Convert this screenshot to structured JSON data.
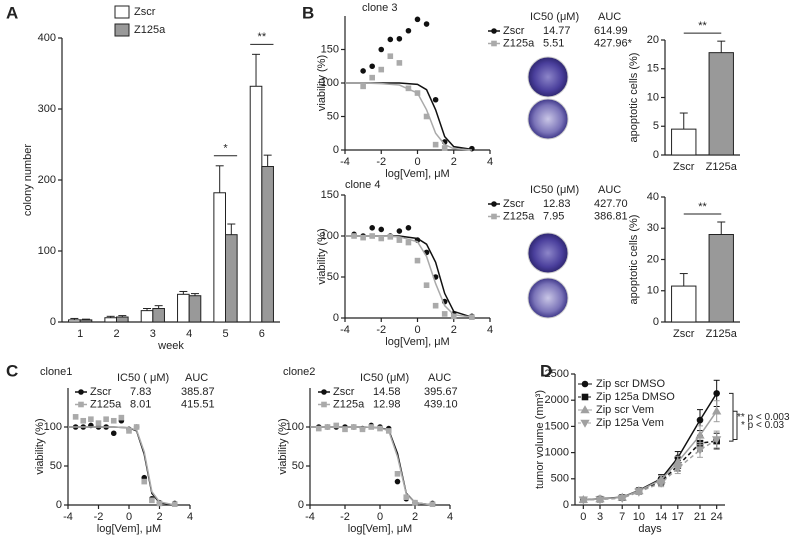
{
  "panels": [
    "A",
    "B",
    "C",
    "D"
  ],
  "chart_data": [
    {
      "type": "bar",
      "x_label": "week",
      "y_label": "colony number",
      "categories": [
        "1",
        "2",
        "3",
        "4",
        "5",
        "6"
      ],
      "series": [
        {
          "name": "Zscr",
          "color": "#ffffff",
          "values": [
            3,
            6,
            16,
            39,
            182,
            332
          ],
          "errors": [
            2,
            2,
            3,
            4,
            38,
            45
          ]
        },
        {
          "name": "Z125a",
          "color": "#999999",
          "values": [
            3,
            7,
            19,
            37,
            123,
            219
          ],
          "errors": [
            1,
            2,
            4,
            3,
            15,
            16
          ]
        }
      ],
      "significance": [
        null,
        null,
        null,
        null,
        "*",
        "**"
      ],
      "ylim": [
        0,
        400
      ],
      "yticks": [
        0,
        100,
        200,
        300,
        400
      ]
    },
    {
      "type": "dose",
      "title": "clone 3",
      "x_label": "log[Vem], μM",
      "y_label": "viability (%)",
      "series": [
        {
          "name": "Zscr",
          "color": "#111111",
          "marker": "circle",
          "x": [
            -3,
            -2.5,
            -2,
            -1.5,
            -1,
            -0.5,
            0,
            0.5,
            1,
            1.5,
            3
          ],
          "values": [
            118,
            125,
            150,
            165,
            166,
            178,
            195,
            188,
            75,
            12,
            2
          ],
          "fit_x": [
            -4,
            -3,
            -2,
            -1,
            0,
            0.5,
            1,
            1.5,
            2,
            3
          ],
          "fit_values": [
            100,
            100,
            100,
            100,
            98,
            90,
            60,
            20,
            5,
            1
          ]
        },
        {
          "name": "Z125a",
          "color": "#aaaaaa",
          "marker": "square",
          "x": [
            -3,
            -2.5,
            -2,
            -1.5,
            -1,
            -0.5,
            0,
            0.5,
            1,
            1.5
          ],
          "values": [
            95,
            108,
            120,
            140,
            130,
            92,
            85,
            50,
            8,
            3
          ],
          "fit_x": [
            -4,
            -3,
            -2,
            -1,
            0,
            0.5,
            1,
            1.5,
            2,
            3
          ],
          "fit_values": [
            100,
            100,
            99,
            97,
            85,
            60,
            25,
            8,
            2,
            0
          ]
        }
      ],
      "table": {
        "header": [
          "IC50 (μM)",
          "AUC"
        ],
        "rows": [
          [
            "14.77",
            "614.99"
          ],
          [
            "5.51",
            "427.96*"
          ]
        ]
      },
      "xlim": [
        -4,
        4
      ],
      "xticks": [
        -4,
        -2,
        0,
        2,
        4
      ],
      "ylim": [
        0,
        200
      ],
      "yticks": [
        0,
        50,
        100,
        150
      ]
    },
    {
      "type": "bar",
      "y_label": "apoptotic cells (%)",
      "categories": [
        "Zscr",
        "Z125a"
      ],
      "values": [
        4.5,
        17.8
      ],
      "errors": [
        2.8,
        2
      ],
      "colors": [
        "#ffffff",
        "#999999"
      ],
      "significance": "**",
      "ylim": [
        0,
        20
      ],
      "yticks": [
        0,
        5,
        10,
        15,
        20
      ]
    },
    {
      "type": "dose",
      "title": "clone 4",
      "x_label": "log[Vem], μM",
      "y_label": "viability (%)",
      "series": [
        {
          "name": "Zscr",
          "color": "#111111",
          "marker": "circle",
          "x": [
            -3.5,
            -3,
            -2.5,
            -2,
            -1.5,
            -1,
            -0.5,
            0,
            0.5,
            1,
            1.5,
            2,
            3
          ],
          "values": [
            102,
            100,
            110,
            108,
            100,
            106,
            110,
            95,
            80,
            50,
            20,
            5,
            2
          ],
          "fit_x": [
            -4,
            -3,
            -2,
            -1,
            0,
            0.5,
            1,
            1.5,
            2,
            3
          ],
          "fit_values": [
            100,
            100,
            100,
            100,
            97,
            90,
            68,
            30,
            8,
            1
          ]
        },
        {
          "name": "Z125a",
          "color": "#aaaaaa",
          "marker": "square",
          "x": [
            -3.5,
            -3,
            -2.5,
            -2,
            -1.5,
            -1,
            -0.5,
            0,
            0.5,
            1,
            1.5,
            2,
            3
          ],
          "values": [
            100,
            98,
            100,
            97,
            99,
            95,
            92,
            70,
            40,
            15,
            5,
            2,
            1
          ],
          "fit_x": [
            -4,
            -3,
            -2,
            -1,
            0,
            0.5,
            1,
            1.5,
            2,
            3
          ],
          "fit_values": [
            100,
            100,
            100,
            99,
            93,
            75,
            42,
            15,
            4,
            1
          ]
        }
      ],
      "table": {
        "header": [
          "IC50 (μM)",
          "AUC"
        ],
        "rows": [
          [
            "12.83",
            "427.70"
          ],
          [
            "7.95",
            "386.81"
          ]
        ]
      },
      "xlim": [
        -4,
        4
      ],
      "xticks": [
        -4,
        -2,
        0,
        2,
        4
      ],
      "ylim": [
        0,
        150
      ],
      "yticks": [
        0,
        50,
        100,
        150
      ]
    },
    {
      "type": "bar",
      "y_label": "apoptotic cells (%)",
      "categories": [
        "Zscr",
        "Z125a"
      ],
      "values": [
        11.5,
        28
      ],
      "errors": [
        4,
        4
      ],
      "colors": [
        "#ffffff",
        "#999999"
      ],
      "significance": "**",
      "ylim": [
        0,
        40
      ],
      "yticks": [
        0,
        10,
        20,
        30,
        40
      ]
    },
    {
      "type": "dose",
      "title": "clone1",
      "x_label": "log[Vem], μM",
      "y_label": "viability (%)",
      "series": [
        {
          "name": "Zscr",
          "color": "#111111",
          "marker": "circle",
          "x": [
            -3.5,
            -3,
            -2.5,
            -2,
            -1.5,
            -1,
            -0.5,
            0,
            0.5,
            1,
            1.5,
            2,
            3
          ],
          "values": [
            100,
            100,
            102,
            100,
            100,
            92,
            108,
            97,
            100,
            35,
            8,
            3,
            2
          ],
          "fit_x": [
            -4,
            -3,
            -2,
            -1,
            0,
            0.5,
            1,
            1.5,
            2,
            3
          ],
          "fit_values": [
            100,
            100,
            100,
            100,
            99,
            95,
            65,
            15,
            3,
            0
          ]
        },
        {
          "name": "Z125a",
          "color": "#aaaaaa",
          "marker": "square",
          "x": [
            -3.5,
            -3,
            -2.5,
            -2,
            -1.5,
            -1,
            -0.5,
            0,
            0.5,
            1,
            1.5,
            2,
            3
          ],
          "values": [
            113,
            108,
            110,
            105,
            110,
            108,
            112,
            95,
            100,
            30,
            6,
            2,
            1
          ],
          "fit_x": [
            -4,
            -3,
            -2,
            -1,
            0,
            0.5,
            1,
            1.5,
            2,
            3
          ],
          "fit_values": [
            100,
            100,
            100,
            100,
            99,
            96,
            68,
            17,
            4,
            0
          ]
        }
      ],
      "table": {
        "header": [
          "IC50 ( μM)",
          "AUC"
        ],
        "rows": [
          [
            "7.83",
            "385.87"
          ],
          [
            "8.01",
            "415.51"
          ]
        ]
      },
      "xlim": [
        -4,
        4
      ],
      "xticks": [
        -4,
        -2,
        0,
        2,
        4
      ],
      "ylim": [
        0,
        150
      ],
      "yticks": [
        0,
        50,
        100
      ]
    },
    {
      "type": "dose",
      "title": "clone2",
      "x_label": "log[Vem], μM",
      "y_label": "viability (%)",
      "series": [
        {
          "name": "Zscr",
          "color": "#111111",
          "marker": "circle",
          "x": [
            -3.5,
            -3,
            -2.5,
            -2,
            -1.5,
            -1,
            -0.5,
            0,
            0.5,
            1,
            1.5,
            2,
            3
          ],
          "values": [
            100,
            100,
            100,
            100,
            100,
            98,
            102,
            100,
            98,
            30,
            8,
            3,
            2
          ],
          "fit_x": [
            -4,
            -3,
            -2,
            -1,
            0,
            0.5,
            1,
            1.5,
            2,
            3
          ],
          "fit_values": [
            100,
            100,
            100,
            100,
            99,
            96,
            66,
            15,
            3,
            0
          ]
        },
        {
          "name": "Z125a",
          "color": "#aaaaaa",
          "marker": "square",
          "x": [
            -3.5,
            -3,
            -2.5,
            -2,
            -1.5,
            -1,
            -0.5,
            0,
            0.5,
            1,
            1.5,
            2,
            3
          ],
          "values": [
            98,
            100,
            102,
            97,
            100,
            97,
            100,
            98,
            95,
            40,
            10,
            3,
            1
          ],
          "fit_x": [
            -4,
            -3,
            -2,
            -1,
            0,
            0.5,
            1,
            1.5,
            2,
            3
          ],
          "fit_values": [
            100,
            100,
            100,
            100,
            99,
            95,
            62,
            14,
            3,
            0
          ]
        }
      ],
      "table": {
        "header": [
          "IC50 (μM)",
          "AUC"
        ],
        "rows": [
          [
            "14.58",
            "395.67"
          ],
          [
            "12.98",
            "439.10"
          ]
        ]
      },
      "xlim": [
        -4,
        4
      ],
      "xticks": [
        -4,
        -2,
        0,
        2,
        4
      ],
      "ylim": [
        0,
        150
      ],
      "yticks": [
        0,
        50,
        100
      ]
    },
    {
      "type": "line",
      "x_label": "days",
      "y_label": "tumor volume (mm³)",
      "legend": "upper left",
      "x": [
        0,
        3,
        7,
        10,
        14,
        17,
        21,
        24
      ],
      "series": [
        {
          "name": "Zip scr DMSO",
          "color": "#111111",
          "marker": "circle",
          "dash": false,
          "values": [
            100,
            120,
            150,
            280,
            500,
            900,
            1620,
            2130
          ],
          "errors": [
            20,
            20,
            30,
            50,
            80,
            120,
            200,
            250
          ]
        },
        {
          "name": "Zip 125a DMSO",
          "color": "#111111",
          "marker": "square",
          "dash": true,
          "values": [
            100,
            110,
            140,
            260,
            450,
            750,
            1180,
            1220
          ],
          "errors": [
            20,
            20,
            30,
            50,
            70,
            100,
            150,
            150
          ]
        },
        {
          "name": "Zip scr Vem",
          "color": "#a0a0a0",
          "marker": "triangle",
          "dash": false,
          "values": [
            100,
            115,
            145,
            270,
            480,
            820,
            1330,
            1790
          ],
          "errors": [
            20,
            20,
            30,
            50,
            80,
            110,
            180,
            200
          ]
        },
        {
          "name": "Zip 125a Vem",
          "color": "#a0a0a0",
          "marker": "triangle-down",
          "dash": true,
          "values": [
            100,
            105,
            130,
            250,
            420,
            700,
            1050,
            1250
          ],
          "errors": [
            20,
            20,
            30,
            50,
            70,
            100,
            140,
            160
          ]
        }
      ],
      "annotations": [
        "** p < 0.003",
        "* p < 0.03"
      ],
      "xlim": [
        -1.5,
        25.5
      ],
      "xticks": [
        0,
        3,
        7,
        10,
        14,
        17,
        21,
        24
      ],
      "ylim": [
        0,
        2500
      ],
      "yticks": [
        0,
        500,
        1000,
        1500,
        2000,
        2500
      ]
    }
  ]
}
